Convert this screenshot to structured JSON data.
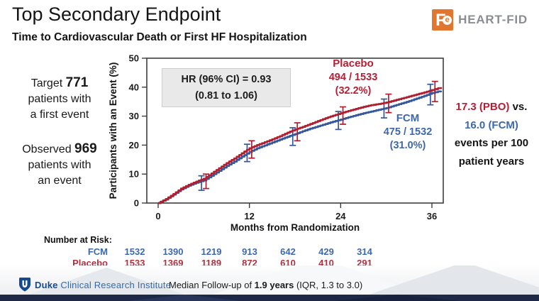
{
  "slide": {
    "title": "Top Secondary Endpoint",
    "subtitle": "Time to Cardiovascular Death or First HF Hospitalization"
  },
  "logo": {
    "icon_f": "F",
    "icon_e": "e",
    "text": "HEART-FID"
  },
  "colors": {
    "placebo_red": "#b01e30",
    "placebo_text_red": "#b41f33",
    "fcm_blue": "#34589b",
    "fcm_text_blue": "#3e68ab",
    "navy_bar": "#1e2948",
    "duke_blue": "#17498f",
    "duke_light_blue": "#2f6cb0",
    "logo_orange": "#e0762f",
    "logo_gray": "#8a8e93"
  },
  "left_panel": {
    "target_prefix": "Target ",
    "target_value": "771",
    "target_line2": "patients with",
    "target_line3": "a first event",
    "observed_prefix": "Observed ",
    "observed_value": "969",
    "observed_line2": "patients with",
    "observed_line3": "an event"
  },
  "annotations": {
    "hr_line1": "HR (96% CI) = 0.93",
    "hr_line2": "(0.81 to 1.06)",
    "placebo_label": "Placebo",
    "placebo_counts": "494 / 1533",
    "placebo_pct": "(32.2%)",
    "fcm_label": "FCM",
    "fcm_counts": "475 / 1532",
    "fcm_pct": "(31.0%)"
  },
  "right_panel": {
    "line1_red": "17.3 (PBO)",
    "line1_black": " vs.",
    "line2_blue": "16.0 (FCM)",
    "line3": "events per 100",
    "line4": "patient years"
  },
  "risk_table": {
    "header": "Number at Risk:",
    "rows": [
      {
        "label": "FCM",
        "color": "#3e68ab",
        "values": [
          "1532",
          "1390",
          "1219",
          "913",
          "642",
          "429",
          "314"
        ]
      },
      {
        "label": "Placebo",
        "color": "#b03040",
        "values": [
          "1533",
          "1369",
          "1189",
          "872",
          "610",
          "410",
          "291"
        ]
      }
    ]
  },
  "footer": {
    "duke_bold": "Duke",
    "duke_rest": " Clinical Research Institute",
    "median_prefix": "Median Follow-up of ",
    "median_bold": "1.9 years",
    "median_suffix": " (IQR, 1.3 to 3.0)"
  },
  "chart_data": {
    "type": "line",
    "subtype": "kaplan-meier cumulative incidence",
    "title": "",
    "xlabel": "Months from Randomization",
    "ylabel": "Participants with an Event (%)",
    "xlim": [
      -1.5,
      37.5
    ],
    "ylim": [
      0,
      50
    ],
    "x_ticks": [
      0,
      12,
      24,
      36
    ],
    "y_ticks": [
      0,
      10,
      20,
      30,
      40,
      50
    ],
    "grid": false,
    "legend_position": "annotated on plot",
    "series": [
      {
        "name": "FCM",
        "color": "#34589b",
        "x": [
          0,
          1,
          2,
          3,
          4,
          5,
          6,
          7,
          8,
          9,
          10,
          11,
          12,
          13,
          14,
          15,
          16,
          17,
          18,
          19,
          20,
          21,
          22,
          23,
          24,
          25,
          26,
          27,
          28,
          29,
          30,
          31,
          32,
          33,
          34,
          35,
          36,
          37.2
        ],
        "y": [
          0,
          1.2,
          2.9,
          4.7,
          6.0,
          7.0,
          7.8,
          9.4,
          11.1,
          12.8,
          14.3,
          16.0,
          17.6,
          18.9,
          19.9,
          20.9,
          21.9,
          22.9,
          23.8,
          24.8,
          25.7,
          26.5,
          27.3,
          28.1,
          28.8,
          29.6,
          30.3,
          31.0,
          31.6,
          32.2,
          32.8,
          33.6,
          34.4,
          35.2,
          36.1,
          37.0,
          38.0,
          38.8
        ],
        "error_bars": [
          {
            "x": 5.7,
            "lo": 4.4,
            "hi": 9.4
          },
          {
            "x": 11.7,
            "lo": 14.3,
            "hi": 20.3
          },
          {
            "x": 17.7,
            "lo": 19.9,
            "hi": 26.0
          },
          {
            "x": 23.7,
            "lo": 25.4,
            "hi": 31.6
          },
          {
            "x": 29.7,
            "lo": 29.4,
            "hi": 35.9
          },
          {
            "x": 35.8,
            "lo": 33.9,
            "hi": 41.0
          }
        ]
      },
      {
        "name": "Placebo",
        "color": "#b01e30",
        "x": [
          0,
          1,
          2,
          3,
          4,
          5,
          6,
          7,
          8,
          9,
          10,
          11,
          12,
          13,
          14,
          15,
          16,
          17,
          18,
          19,
          20,
          21,
          22,
          23,
          24,
          25,
          26,
          27,
          28,
          29,
          30,
          31,
          32,
          33,
          34,
          35,
          36,
          37.2
        ],
        "y": [
          0,
          1.4,
          3.1,
          5.0,
          6.3,
          7.4,
          8.4,
          10.2,
          12.0,
          13.8,
          15.4,
          17.2,
          18.9,
          20.0,
          21.0,
          22.0,
          23.1,
          24.3,
          25.4,
          26.3,
          27.3,
          28.3,
          29.3,
          30.2,
          31.0,
          31.8,
          32.5,
          33.2,
          33.8,
          34.2,
          34.7,
          35.4,
          36.1,
          36.8,
          37.5,
          38.2,
          39.0,
          40.0
        ],
        "error_bars": [
          {
            "x": 6.3,
            "lo": 5.0,
            "hi": 10.0
          },
          {
            "x": 12.3,
            "lo": 15.5,
            "hi": 21.5
          },
          {
            "x": 18.3,
            "lo": 21.5,
            "hi": 27.7
          },
          {
            "x": 24.3,
            "lo": 27.2,
            "hi": 33.2
          },
          {
            "x": 30.3,
            "lo": 31.2,
            "hi": 37.6
          },
          {
            "x": 36.4,
            "lo": 35.0,
            "hi": 42.0
          }
        ]
      }
    ]
  }
}
